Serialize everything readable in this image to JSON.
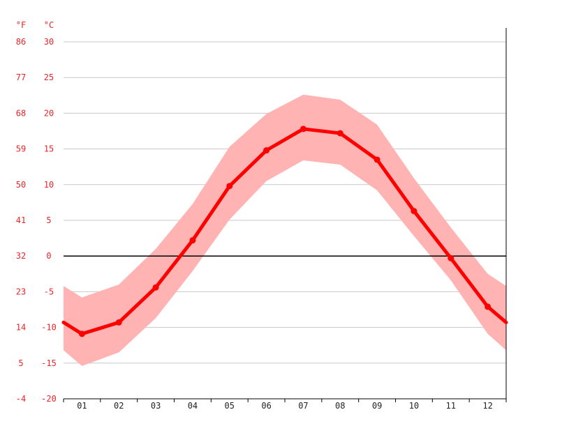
{
  "chart_data": {
    "type": "line",
    "title": "",
    "xlabel": "",
    "ylabel": "",
    "y_unit_left": "°F",
    "y_unit_right": "°C",
    "categories": [
      "01",
      "02",
      "03",
      "04",
      "05",
      "06",
      "07",
      "08",
      "09",
      "10",
      "11",
      "12"
    ],
    "ylim": [
      -20,
      30
    ],
    "y_ticks_c": [
      "30",
      "25",
      "20",
      "15",
      "10",
      "5",
      "0",
      "-5",
      "-10",
      "-15",
      "-20"
    ],
    "y_ticks_f": [
      "86",
      "77",
      "68",
      "59",
      "50",
      "41",
      "32",
      "23",
      "14",
      "5",
      "-4"
    ],
    "grid": true,
    "zero_line": true,
    "series": [
      {
        "values": [
          -10.9,
          -9.3,
          -4.4,
          2.2,
          9.8,
          14.8,
          17.8,
          17.2,
          13.5,
          6.3,
          -0.3,
          -7.1
        ]
      }
    ],
    "range_band": {
      "upper": [
        -5.8,
        -4.0,
        1.0,
        7.3,
        15.3,
        19.9,
        22.6,
        21.9,
        18.4,
        10.9,
        4.0,
        -2.5
      ],
      "lower": [
        -15.4,
        -13.5,
        -8.7,
        -2.1,
        5.1,
        10.5,
        13.4,
        12.8,
        9.2,
        2.8,
        -3.4,
        -10.9
      ],
      "edge_start": {
        "upper": -4.2,
        "lower": -13.2,
        "mid": -9.3
      },
      "edge_end": {
        "upper": -4.2,
        "lower": -13.2,
        "mid": -9.3
      }
    },
    "colors": {
      "line": "#ff0000",
      "band": "#ffb3b3",
      "tick_y": "#e8262a",
      "grid": "#c8c8c8",
      "zero": "#000000",
      "axis": "#000000"
    }
  }
}
